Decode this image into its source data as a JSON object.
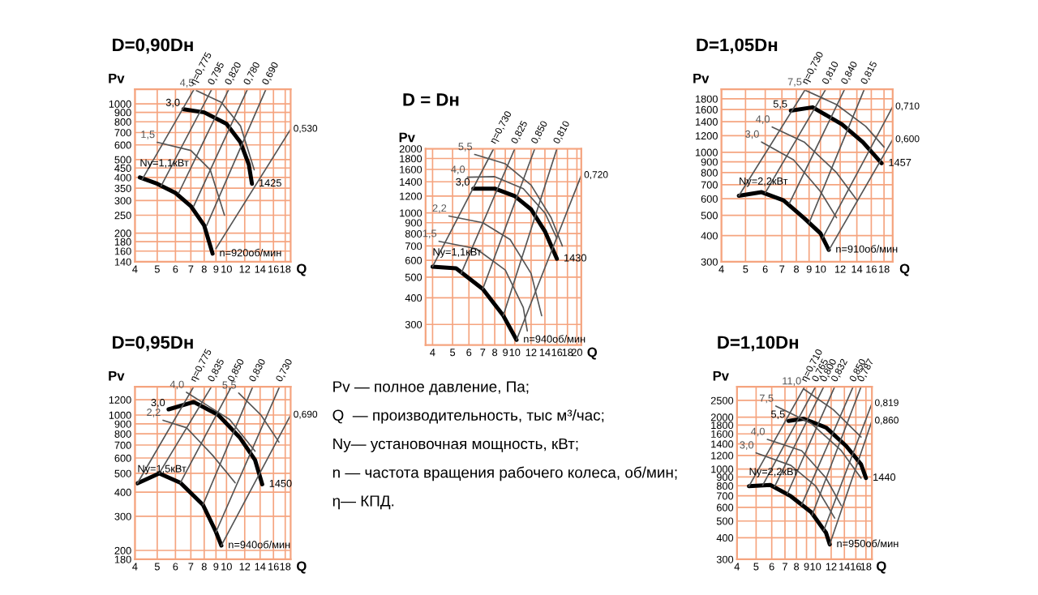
{
  "chart_data": [
    {
      "type": "line",
      "title": "D=0,90Dн",
      "xlabel": "Q",
      "ylabel": "Pv",
      "log": "xy",
      "grid": true,
      "xlim": [
        4,
        19
      ],
      "ylim": [
        140,
        1200
      ],
      "xticks": [
        4,
        5,
        6,
        7,
        8,
        9,
        10,
        12,
        14,
        16,
        18
      ],
      "yticks": [
        140,
        160,
        180,
        200,
        250,
        300,
        350,
        400,
        450,
        500,
        600,
        700,
        800,
        900,
        1000
      ],
      "series": [
        {
          "color": "#000000",
          "x": [
            6.5,
            8,
            10,
            11.5,
            12.5,
            12.9
          ],
          "values": [
            935,
            900,
            780,
            620,
            470,
            370
          ]
        },
        {
          "color": "#000000",
          "x": [
            4.2,
            5,
            6,
            7,
            8,
            8.7
          ],
          "values": [
            400,
            370,
            330,
            280,
            220,
            155
          ]
        },
        {
          "name": "4,5",
          "color": "#555555",
          "x": [
            13.2,
            11.5,
            9.5,
            7.4
          ],
          "values": [
            440,
            760,
            1020,
            1180
          ]
        },
        {
          "name": "1,5",
          "color": "#555555",
          "x": [
            9.8,
            8.5,
            7,
            5
          ],
          "values": [
            250,
            440,
            560,
            620
          ]
        },
        {
          "name": "η=0,775",
          "color": "#555555",
          "x": [
            4.3,
            7.2
          ],
          "values": [
            390,
            1190
          ]
        },
        {
          "name": "0,795",
          "color": "#555555",
          "x": [
            5.2,
            8.6
          ],
          "values": [
            360,
            1190
          ]
        },
        {
          "name": "0,820",
          "color": "#555555",
          "x": [
            6.2,
            10.2
          ],
          "values": [
            330,
            1190
          ]
        },
        {
          "name": "0,780",
          "color": "#555555",
          "x": [
            7.2,
            12.3
          ],
          "values": [
            280,
            1190
          ]
        },
        {
          "name": "0,690",
          "color": "#555555",
          "x": [
            8.2,
            14.8
          ],
          "values": [
            220,
            1190
          ]
        },
        {
          "name": "0,530",
          "color": "#555555",
          "x": [
            9,
            19
          ],
          "values": [
            165,
            730
          ]
        }
      ],
      "annotations": [
        {
          "text": "3,0",
          "x": 6.5,
          "y": 935
        },
        {
          "text": "1425",
          "x": 12.9,
          "y": 370
        },
        {
          "text": "Ny=1,1кВт",
          "x": 4.2,
          "y": 400
        },
        {
          "text": "n=920об/мин",
          "x": 8.7,
          "y": 155
        }
      ]
    },
    {
      "type": "line",
      "title": "D = Dн",
      "xlabel": "Q",
      "ylabel": "Pv",
      "log": "xy",
      "grid": true,
      "xlim": [
        3.7,
        21
      ],
      "ylim": [
        240,
        2000
      ],
      "xticks": [
        4,
        5,
        6,
        7,
        8,
        9,
        10,
        12,
        14,
        16,
        18,
        20
      ],
      "yticks": [
        300,
        400,
        500,
        600,
        700,
        800,
        900,
        1000,
        1200,
        1400,
        1600,
        1800,
        2000
      ],
      "series": [
        {
          "color": "#000000",
          "x": [
            6.3,
            8,
            10,
            12,
            14,
            16
          ],
          "values": [
            1300,
            1300,
            1200,
            1040,
            820,
            610
          ]
        },
        {
          "color": "#000000",
          "x": [
            4,
            5.2,
            7,
            8.8,
            10.2
          ],
          "values": [
            560,
            550,
            440,
            330,
            254
          ]
        },
        {
          "name": "5,5",
          "color": "#555555",
          "x": [
            17,
            15,
            12,
            9,
            6.4
          ],
          "values": [
            700,
            950,
            1350,
            1700,
            1880
          ]
        },
        {
          "name": "4,0",
          "color": "#555555",
          "x": [
            16,
            14,
            11,
            8,
            5.9
          ],
          "values": [
            760,
            1000,
            1300,
            1480,
            1470
          ]
        },
        {
          "name": "2,2",
          "color": "#555555",
          "x": [
            13.5,
            12,
            9.5,
            7,
            4.8
          ],
          "values": [
            330,
            520,
            750,
            900,
            967
          ]
        },
        {
          "name": "1,5",
          "color": "#555555",
          "x": [
            11.5,
            11,
            9,
            6.5,
            4.3
          ],
          "values": [
            280,
            360,
            540,
            680,
            736
          ]
        },
        {
          "name": "η=0,730",
          "color": "#555555",
          "x": [
            4,
            7.9
          ],
          "values": [
            560,
            2000
          ]
        },
        {
          "name": "0,825",
          "color": "#555555",
          "x": [
            5.5,
            10
          ],
          "values": [
            520,
            2000
          ]
        },
        {
          "name": "0,850",
          "color": "#555555",
          "x": [
            7,
            12.5
          ],
          "values": [
            440,
            2000
          ]
        },
        {
          "name": "0,810",
          "color": "#555555",
          "x": [
            8.8,
            16
          ],
          "values": [
            330,
            2000
          ]
        },
        {
          "name": "0,720",
          "color": "#555555",
          "x": [
            10.2,
            21
          ],
          "values": [
            254,
            1500
          ]
        }
      ],
      "annotations": [
        {
          "text": "3,0",
          "x": 6.3,
          "y": 1300
        },
        {
          "text": "1430",
          "x": 16,
          "y": 610
        },
        {
          "text": "Ny=1,1кВт",
          "x": 4,
          "y": 560
        },
        {
          "text": "n=940об/мин",
          "x": 10.2,
          "y": 254
        }
      ]
    },
    {
      "type": "line",
      "title": "D=1,05Dн",
      "xlabel": "Q",
      "ylabel": "Pv",
      "log": "xy",
      "grid": true,
      "xlim": [
        4,
        19.5
      ],
      "ylim": [
        300,
        2000
      ],
      "xticks": [
        4,
        5,
        6,
        7,
        8,
        9,
        10,
        12,
        14,
        16,
        18
      ],
      "yticks": [
        300,
        400,
        500,
        600,
        700,
        800,
        900,
        1000,
        1200,
        1400,
        1600,
        1800
      ],
      "series": [
        {
          "color": "#000000",
          "x": [
            7.6,
            9.3,
            12.2,
            14.8,
            17.6
          ],
          "values": [
            1580,
            1640,
            1360,
            1118,
            886
          ]
        },
        {
          "color": "#000000",
          "x": [
            4.7,
            5.8,
            7.1,
            8.6,
            10,
            10.8
          ],
          "values": [
            620,
            645,
            590,
            485,
            410,
            342
          ]
        },
        {
          "name": "7,5",
          "color": "#555555",
          "x": [
            18,
            15.2,
            11.6,
            8.6
          ],
          "values": [
            1060,
            1330,
            1690,
            1990
          ]
        },
        {
          "name": "4,0",
          "color": "#555555",
          "x": [
            14,
            11.6,
            8.6,
            6.4
          ],
          "values": [
            592,
            800,
            1120,
            1320
          ]
        },
        {
          "name": "3,0",
          "color": "#555555",
          "x": [
            11.6,
            10,
            7.8,
            5.8
          ],
          "values": [
            487,
            650,
            920,
            1120
          ]
        },
        {
          "name": "η=0,730",
          "color": "#555555",
          "x": [
            4.7,
            8.7
          ],
          "values": [
            620,
            2000
          ]
        },
        {
          "name": "0,810",
          "color": "#555555",
          "x": [
            6,
            10.5
          ],
          "values": [
            640,
            2000
          ]
        },
        {
          "name": "0,840",
          "color": "#555555",
          "x": [
            7.5,
            12.5
          ],
          "values": [
            570,
            2000
          ]
        },
        {
          "name": "0,815",
          "color": "#555555",
          "x": [
            9,
            15
          ],
          "values": [
            460,
            2000
          ]
        },
        {
          "name": "0,710",
          "color": "#555555",
          "x": [
            10.2,
            19.5
          ],
          "values": [
            390,
            1650
          ]
        },
        {
          "name": "0,600",
          "color": "#555555",
          "x": [
            10.8,
            19.5
          ],
          "values": [
            340,
            1150
          ]
        }
      ],
      "annotations": [
        {
          "text": "5,5",
          "x": 7.6,
          "y": 1580
        },
        {
          "text": "1457",
          "x": 17.6,
          "y": 886
        },
        {
          "text": "Ny=2,2кВт",
          "x": 4.7,
          "y": 620
        },
        {
          "text": "n=910об/мин",
          "x": 10.8,
          "y": 342
        }
      ]
    },
    {
      "type": "line",
      "title": "D=0,95Dн",
      "xlabel": "Q",
      "ylabel": "Pv",
      "log": "xy",
      "grid": true,
      "xlim": [
        4,
        19
      ],
      "ylim": [
        180,
        1400
      ],
      "xticks": [
        4,
        5,
        6,
        7,
        8,
        9,
        10,
        12,
        14,
        16,
        18
      ],
      "yticks": [
        180,
        200,
        300,
        400,
        500,
        600,
        700,
        800,
        900,
        1000,
        1200
      ],
      "series": [
        {
          "color": "#000000",
          "x": [
            5.6,
            7.2,
            9.2,
            11.4,
            13.3,
            14.3
          ],
          "values": [
            1070,
            1168,
            1002,
            768,
            587,
            439
          ]
        },
        {
          "color": "#000000",
          "x": [
            4.1,
            5.1,
            6.3,
            7.9,
            9,
            9.5
          ],
          "values": [
            444,
            500,
            447,
            344,
            249,
            212
          ]
        },
        {
          "name": "5,5",
          "color": "#555555",
          "x": [
            16.9,
            14.1,
            11.3
          ],
          "values": [
            725,
            1002,
            1300
          ]
        },
        {
          "name": "4,0",
          "color": "#555555",
          "x": [
            13.3,
            10.3,
            6.7
          ],
          "values": [
            651,
            950,
            1310
          ]
        },
        {
          "name": "2,2",
          "color": "#555555",
          "x": [
            10.9,
            8.7,
            6.7,
            5.3
          ],
          "values": [
            447,
            620,
            860,
            940
          ]
        },
        {
          "name": "η=0,775",
          "color": "#555555",
          "x": [
            4.1,
            7.2
          ],
          "values": [
            444,
            1400
          ]
        },
        {
          "name": "0,835",
          "color": "#555555",
          "x": [
            5.1,
            8.6
          ],
          "values": [
            500,
            1400
          ]
        },
        {
          "name": "0,850",
          "color": "#555555",
          "x": [
            6.3,
            10.5
          ],
          "values": [
            447,
            1400
          ]
        },
        {
          "name": "0,830",
          "color": "#555555",
          "x": [
            7.9,
            13
          ],
          "values": [
            344,
            1400
          ]
        },
        {
          "name": "0,730",
          "color": "#555555",
          "x": [
            9,
            17
          ],
          "values": [
            249,
            1400
          ]
        },
        {
          "name": "0,690",
          "color": "#555555",
          "x": [
            9.5,
            19
          ],
          "values": [
            212,
            1000
          ]
        }
      ],
      "annotations": [
        {
          "text": "3,0",
          "x": 5.6,
          "y": 1070
        },
        {
          "text": "1450",
          "x": 14.3,
          "y": 439
        },
        {
          "text": "Ny=1,5кВт",
          "x": 4.1,
          "y": 444
        },
        {
          "text": "n=940об/мин",
          "x": 9.5,
          "y": 212
        }
      ]
    },
    {
      "type": "line",
      "title": "D=1,10Dн",
      "xlabel": "Q",
      "ylabel": "Pv",
      "log": "xy",
      "grid": true,
      "xlim": [
        4,
        19.3
      ],
      "ylim": [
        300,
        3000
      ],
      "xticks": [
        4,
        5,
        6,
        7,
        8,
        9,
        10,
        12,
        14,
        16,
        18
      ],
      "yticks": [
        300,
        400,
        500,
        600,
        700,
        800,
        900,
        1000,
        1200,
        1400,
        1600,
        1800,
        2000,
        2500
      ],
      "series": [
        {
          "color": "#000000",
          "x": [
            7.3,
            8.7,
            11.3,
            14.3,
            17,
            18
          ],
          "values": [
            1900,
            1960,
            1740,
            1360,
            1066,
            888
          ]
        },
        {
          "color": "#000000",
          "x": [
            4.6,
            5.9,
            7.5,
            9.5,
            11.3,
            11.8
          ],
          "values": [
            795,
            809,
            696,
            563,
            427,
            366
          ]
        },
        {
          "name": "11,0",
          "color": "#555555",
          "x": [
            17,
            12.3,
            8.7
          ],
          "values": [
            1535,
            2210,
            2917
          ]
        },
        {
          "name": "7,5",
          "color": "#555555",
          "x": [
            17,
            13.5,
            9.5,
            6.3
          ],
          "values": [
            886,
            1278,
            1843,
            2318
          ]
        },
        {
          "name": "4,0",
          "color": "#555555",
          "x": [
            13.5,
            11.3,
            8.5,
            5.7
          ],
          "values": [
            615,
            887,
            1278,
            1487
          ]
        },
        {
          "name": "3,0",
          "color": "#555555",
          "x": [
            12.5,
            10,
            7.5,
            5
          ],
          "values": [
            520,
            800,
            1050,
            1241
          ]
        },
        {
          "name": "η=0,710",
          "color": "#555555",
          "x": [
            4.6,
            8.8
          ],
          "values": [
            795,
            3000
          ]
        },
        {
          "name": "0,765",
          "color": "#555555",
          "x": [
            5.4,
            10
          ],
          "values": [
            805,
            3000
          ]
        },
        {
          "name": "0,800",
          "color": "#555555",
          "x": [
            6.2,
            11
          ],
          "values": [
            790,
            3000
          ]
        },
        {
          "name": "0,832",
          "color": "#555555",
          "x": [
            7.2,
            12.5
          ],
          "values": [
            720,
            3000
          ]
        },
        {
          "name": "0,850",
          "color": "#555555",
          "x": [
            8.5,
            15.5
          ],
          "values": [
            620,
            3000
          ]
        },
        {
          "name": "0,787",
          "color": "#555555",
          "x": [
            9.6,
            17
          ],
          "values": [
            540,
            3000
          ]
        },
        {
          "name": "0,819",
          "color": "#555555",
          "x": [
            11,
            19.3
          ],
          "values": [
            440,
            2400
          ]
        },
        {
          "name": "0,860",
          "color": "#555555",
          "x": [
            11.8,
            19.3
          ],
          "values": [
            366,
            1900
          ]
        }
      ],
      "annotations": [
        {
          "text": "5,5",
          "x": 7.3,
          "y": 1900
        },
        {
          "text": "1440",
          "x": 18,
          "y": 888
        },
        {
          "text": "Ny=2,2кВт",
          "x": 4.6,
          "y": 795
        },
        {
          "text": "n=950об/мин",
          "x": 11.8,
          "y": 366
        }
      ]
    },
    {
      "type": "other",
      "annotations": [
        "Pv — полное давление, Па;",
        "Q  — производительность, тыс м³/час;",
        "Ny— установочная мощность, кВт;",
        "n — частота вращения рабочего колеса, об/мин;",
        "η— КПД."
      ]
    }
  ]
}
